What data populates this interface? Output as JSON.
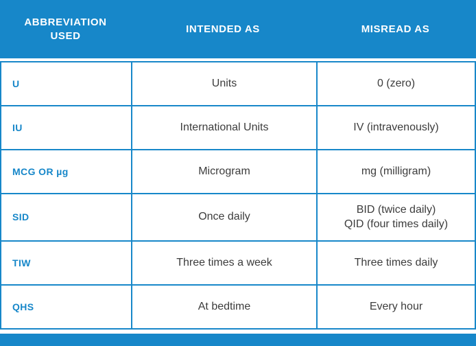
{
  "colors": {
    "accent": "#1787c9",
    "header_text": "#ffffff",
    "body_text": "#3c3c3c"
  },
  "table": {
    "headers": [
      "ABBREVIATION\nUSED",
      "INTENDED AS",
      "MISREAD AS"
    ],
    "rows": [
      {
        "abbreviation": "U",
        "intended": "Units",
        "misread": "0 (zero)"
      },
      {
        "abbreviation": "IU",
        "intended": "International Units",
        "misread": "IV (intravenously)"
      },
      {
        "abbreviation": "MCG OR µg",
        "intended": "Microgram",
        "misread": "mg (milligram)"
      },
      {
        "abbreviation": "SID",
        "intended": "Once daily",
        "misread": "BID (twice daily)\nQID (four times daily)"
      },
      {
        "abbreviation": "TIW",
        "intended": "Three times a week",
        "misread": "Three times daily"
      },
      {
        "abbreviation": "QHS",
        "intended": "At bedtime",
        "misread": "Every hour"
      }
    ]
  }
}
